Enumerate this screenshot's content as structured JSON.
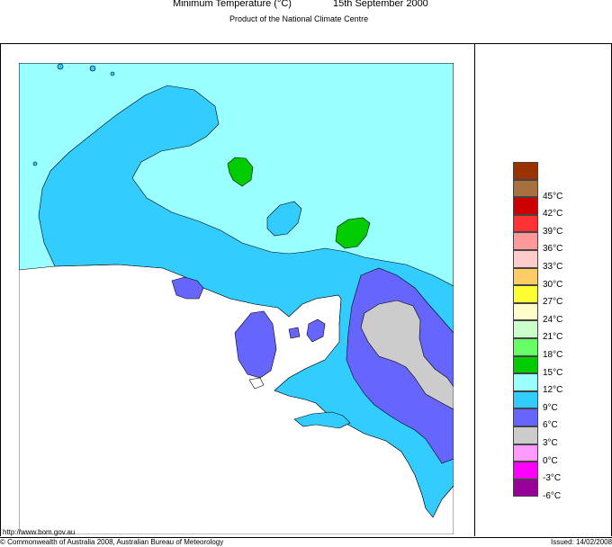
{
  "header": {
    "title": "Minimum Temperature (°C)",
    "date": "15th September 2000",
    "subtitle": "Product of the National Climate Centre"
  },
  "footer": {
    "url": "http://www.bom.gov.au",
    "copyright": "© Commonwealth of Australia 2008, Australian Bureau of Meteorology",
    "issued": "Issued: 14/02/2008"
  },
  "legend": {
    "items": [
      {
        "color": "#993300"
      },
      {
        "label": "45",
        "color": "#a86f3f"
      },
      {
        "label": "42",
        "color": "#cc0000"
      },
      {
        "label": "39",
        "color": "#ff3333"
      },
      {
        "label": "36",
        "color": "#ff9999"
      },
      {
        "label": "33",
        "color": "#ffcccc"
      },
      {
        "label": "30",
        "color": "#ffcc66"
      },
      {
        "label": "27",
        "color": "#ffff33"
      },
      {
        "label": "24",
        "color": "#ffffcc"
      },
      {
        "label": "21",
        "color": "#ccffcc"
      },
      {
        "label": "18",
        "color": "#66ff66"
      },
      {
        "label": "15",
        "color": "#00cc00"
      },
      {
        "label": "12",
        "color": "#99ffff"
      },
      {
        "label": "9",
        "color": "#33ccff"
      },
      {
        "label": "6",
        "color": "#6666ff"
      },
      {
        "label": "3",
        "color": "#cccccc"
      },
      {
        "label": "0",
        "color": "#ff99ff"
      },
      {
        "label": "-3",
        "color": "#ff00ff"
      },
      {
        "label": "-6",
        "color": "#990099"
      }
    ],
    "unit": "°C"
  },
  "map_colors": {
    "c12": "#99ffff",
    "c9": "#33ccff",
    "c6": "#6666ff",
    "c3": "#cccccc",
    "c15": "#00cc00"
  }
}
